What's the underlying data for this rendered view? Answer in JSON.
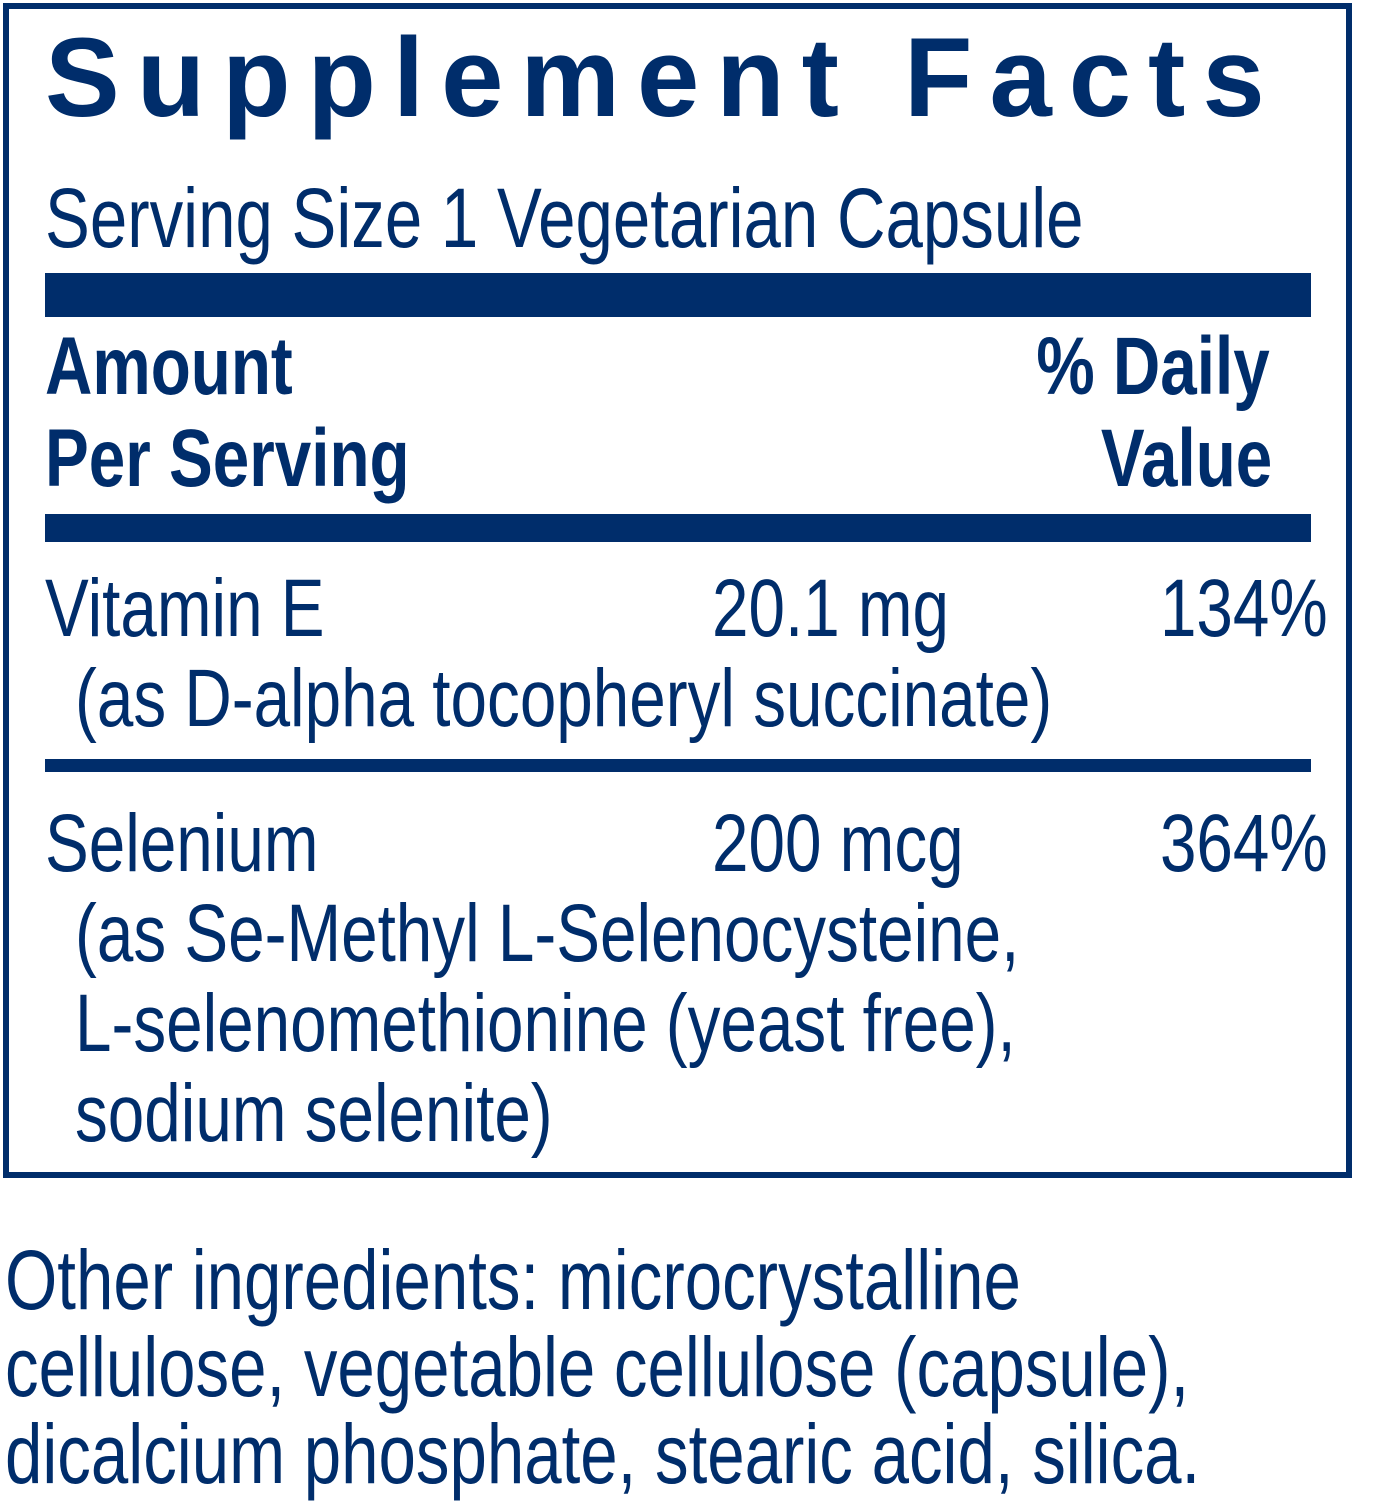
{
  "label": {
    "title": "Supplement Facts",
    "serving_size": "Serving Size 1 Vegetarian Capsule",
    "header": {
      "amount_line1": "Amount",
      "amount_line2": "Per Serving",
      "dv_line1": "% Daily",
      "dv_line2": "Value"
    },
    "nutrients": [
      {
        "name": "Vitamin E",
        "amount": "20.1 mg",
        "dv": "134%",
        "detail": [
          "(as D-alpha tocopheryl succinate)"
        ]
      },
      {
        "name": "Selenium",
        "amount": "200 mcg",
        "dv": "364%",
        "detail": [
          "(as Se-Methyl L-Selenocysteine,",
          "L-selenomethionine (yeast free),",
          "sodium selenite)"
        ]
      }
    ],
    "other_ingredients": [
      "Other ingredients: microcrystalline",
      "cellulose, vegetable cellulose (capsule),",
      "dicalcium phosphate, stearic acid, silica."
    ]
  },
  "colors": {
    "ink": "#002d6b",
    "background": "#ffffff"
  }
}
